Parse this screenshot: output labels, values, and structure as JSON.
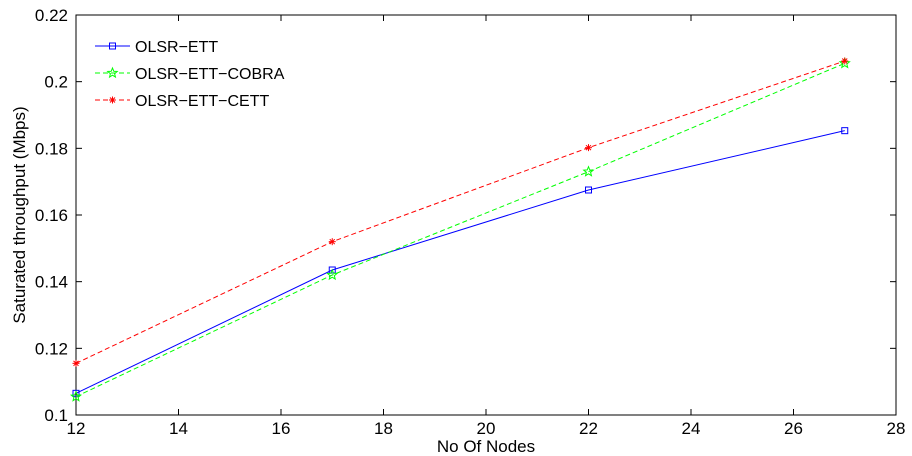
{
  "chart_data": {
    "type": "line",
    "x": [
      12,
      17,
      22,
      27
    ],
    "xlabel": "No Of Nodes",
    "ylabel": "Saturated throughput (Mbps)",
    "xlim": [
      12,
      28
    ],
    "ylim": [
      0.1,
      0.22
    ],
    "xticks": [
      12,
      14,
      16,
      18,
      20,
      22,
      24,
      26,
      28
    ],
    "yticks": [
      0.1,
      0.12,
      0.14,
      0.16,
      0.18,
      0.2,
      0.22
    ],
    "ytick_labels": [
      "0.1",
      "0.12",
      "0.14",
      "0.16",
      "0.18",
      "0.2",
      "0.22"
    ],
    "grid": false,
    "legend_position": "top-left",
    "series": [
      {
        "name": "OLSR−ETT",
        "values": [
          0.1065,
          0.1435,
          0.1675,
          0.1853
        ],
        "color": "#0000ff",
        "line": "solid",
        "marker": "square"
      },
      {
        "name": "OLSR−ETT−COBRA",
        "values": [
          0.1055,
          0.142,
          0.173,
          0.2055
        ],
        "color": "#00ff00",
        "line": "dashed",
        "marker": "star"
      },
      {
        "name": "OLSR−ETT−CETT",
        "values": [
          0.1155,
          0.152,
          0.1802,
          0.2062
        ],
        "color": "#ff0000",
        "line": "dashed",
        "marker": "asterisk"
      }
    ]
  }
}
